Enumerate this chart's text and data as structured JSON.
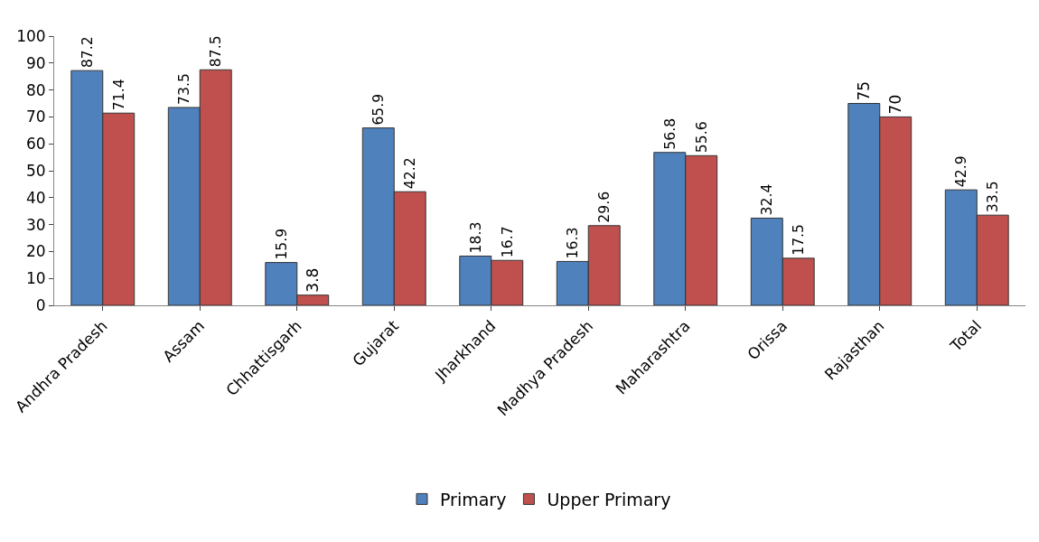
{
  "chart_data": {
    "type": "bar",
    "categories": [
      "Andhra Pradesh",
      "Assam",
      "Chhattisgarh",
      "Gujarat",
      "Jharkhand",
      "Madhya Pradesh",
      "Maharashtra",
      "Orissa",
      "Rajasthan",
      "Total"
    ],
    "series": [
      {
        "name": "Primary",
        "color": "#4f81bd",
        "values": [
          87.2,
          73.5,
          15.9,
          65.9,
          18.3,
          16.3,
          56.8,
          32.4,
          75,
          42.9
        ]
      },
      {
        "name": "Upper Primary",
        "color": "#c0504d",
        "values": [
          71.4,
          87.5,
          3.8,
          42.2,
          16.7,
          29.6,
          55.6,
          17.5,
          70,
          33.5
        ]
      }
    ],
    "ylim": [
      0,
      100
    ],
    "yticks": [
      0,
      10,
      20,
      30,
      40,
      50,
      60,
      70,
      80,
      90,
      100
    ],
    "legend": "bottom",
    "data_labels": true
  }
}
